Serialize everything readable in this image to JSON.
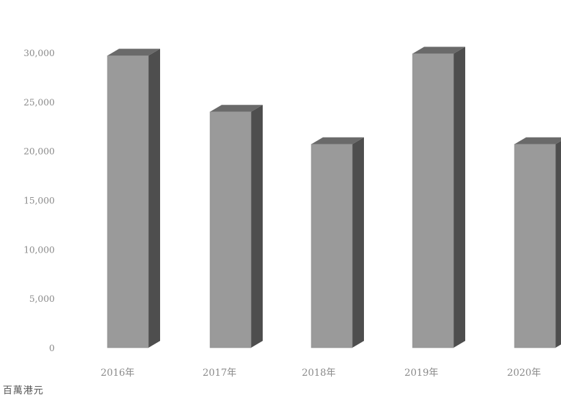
{
  "chart_data": {
    "type": "bar",
    "style": "3d-column",
    "categories": [
      "2016年",
      "2017年",
      "2018年",
      "2019年",
      "2020年"
    ],
    "values": [
      29700,
      24000,
      20700,
      29900,
      20700
    ],
    "ylim": [
      0,
      30000
    ],
    "y_ticks": [
      "0",
      "5,000",
      "10,000",
      "15,000",
      "20,000",
      "25,000",
      "30,000"
    ],
    "y_tick_values": [
      0,
      5000,
      10000,
      15000,
      20000,
      25000,
      30000
    ],
    "unit_label": "百萬港元",
    "grid": false,
    "legend": "none",
    "colors": {
      "bar_front": "#9a9a9a",
      "bar_side": "#4e4e4e",
      "bar_top": "#6a6a6a",
      "tick_text": "#8a8a8a"
    }
  }
}
